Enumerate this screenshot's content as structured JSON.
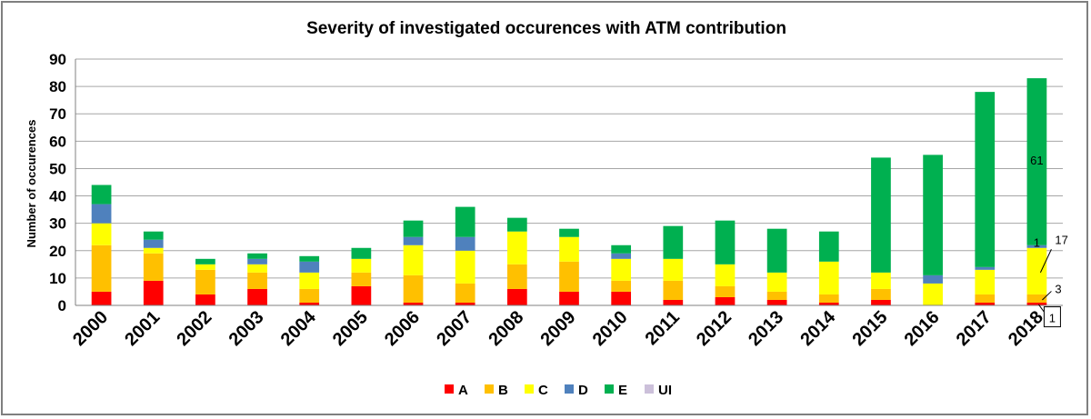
{
  "chart_data": {
    "type": "bar",
    "stacked": true,
    "title": "Severity of investigated occurences with ATM contribution",
    "ylabel": "Number of occurences",
    "xlabel": "",
    "ylim": [
      0,
      90
    ],
    "yticks": [
      0,
      10,
      20,
      30,
      40,
      50,
      60,
      70,
      80,
      90
    ],
    "grid": true,
    "legend_position": "bottom",
    "categories": [
      "2000",
      "2001",
      "2002",
      "2003",
      "2004",
      "2005",
      "2006",
      "2007",
      "2008",
      "2009",
      "2010",
      "2011",
      "2012",
      "2013",
      "2014",
      "2015",
      "2016",
      "2017",
      "2018"
    ],
    "series": [
      {
        "name": "A",
        "color": "#ff0000",
        "values": [
          5,
          9,
          4,
          6,
          1,
          7,
          1,
          1,
          6,
          5,
          5,
          2,
          3,
          2,
          1,
          2,
          0,
          1,
          1
        ]
      },
      {
        "name": "B",
        "color": "#ffc000",
        "values": [
          17,
          10,
          9,
          6,
          5,
          5,
          10,
          7,
          9,
          11,
          4,
          7,
          4,
          3,
          3,
          4,
          0,
          3,
          3
        ]
      },
      {
        "name": "C",
        "color": "#ffff00",
        "values": [
          8,
          2,
          2,
          3,
          6,
          5,
          11,
          12,
          12,
          9,
          8,
          8,
          8,
          7,
          12,
          6,
          8,
          9,
          17
        ]
      },
      {
        "name": "D",
        "color": "#4f81bd",
        "values": [
          7,
          3,
          0,
          2,
          4,
          0,
          3,
          5,
          0,
          0,
          2,
          0,
          0,
          0,
          0,
          0,
          3,
          1,
          1
        ]
      },
      {
        "name": "E",
        "color": "#00b050",
        "values": [
          7,
          3,
          2,
          2,
          2,
          4,
          6,
          11,
          5,
          3,
          3,
          12,
          16,
          16,
          11,
          42,
          44,
          64,
          61
        ]
      },
      {
        "name": "UI",
        "color": "#ccc0da",
        "values": [
          0,
          0,
          0,
          0,
          0,
          0,
          0,
          0,
          0,
          0,
          0,
          0,
          0,
          0,
          0,
          0,
          0,
          0,
          0
        ]
      }
    ],
    "annotations": [
      {
        "text": "61",
        "category": "2018",
        "y": 51.5
      },
      {
        "text": "1",
        "category": "2018",
        "y": 21.5
      },
      {
        "text": "17",
        "category": "2018",
        "y": 22.5,
        "callout": true
      },
      {
        "text": "3",
        "category": "2018",
        "y": 4.5,
        "callout": true
      },
      {
        "text": "1",
        "category": "2018",
        "y": -5.5,
        "callout": true,
        "boxed": true
      }
    ]
  }
}
